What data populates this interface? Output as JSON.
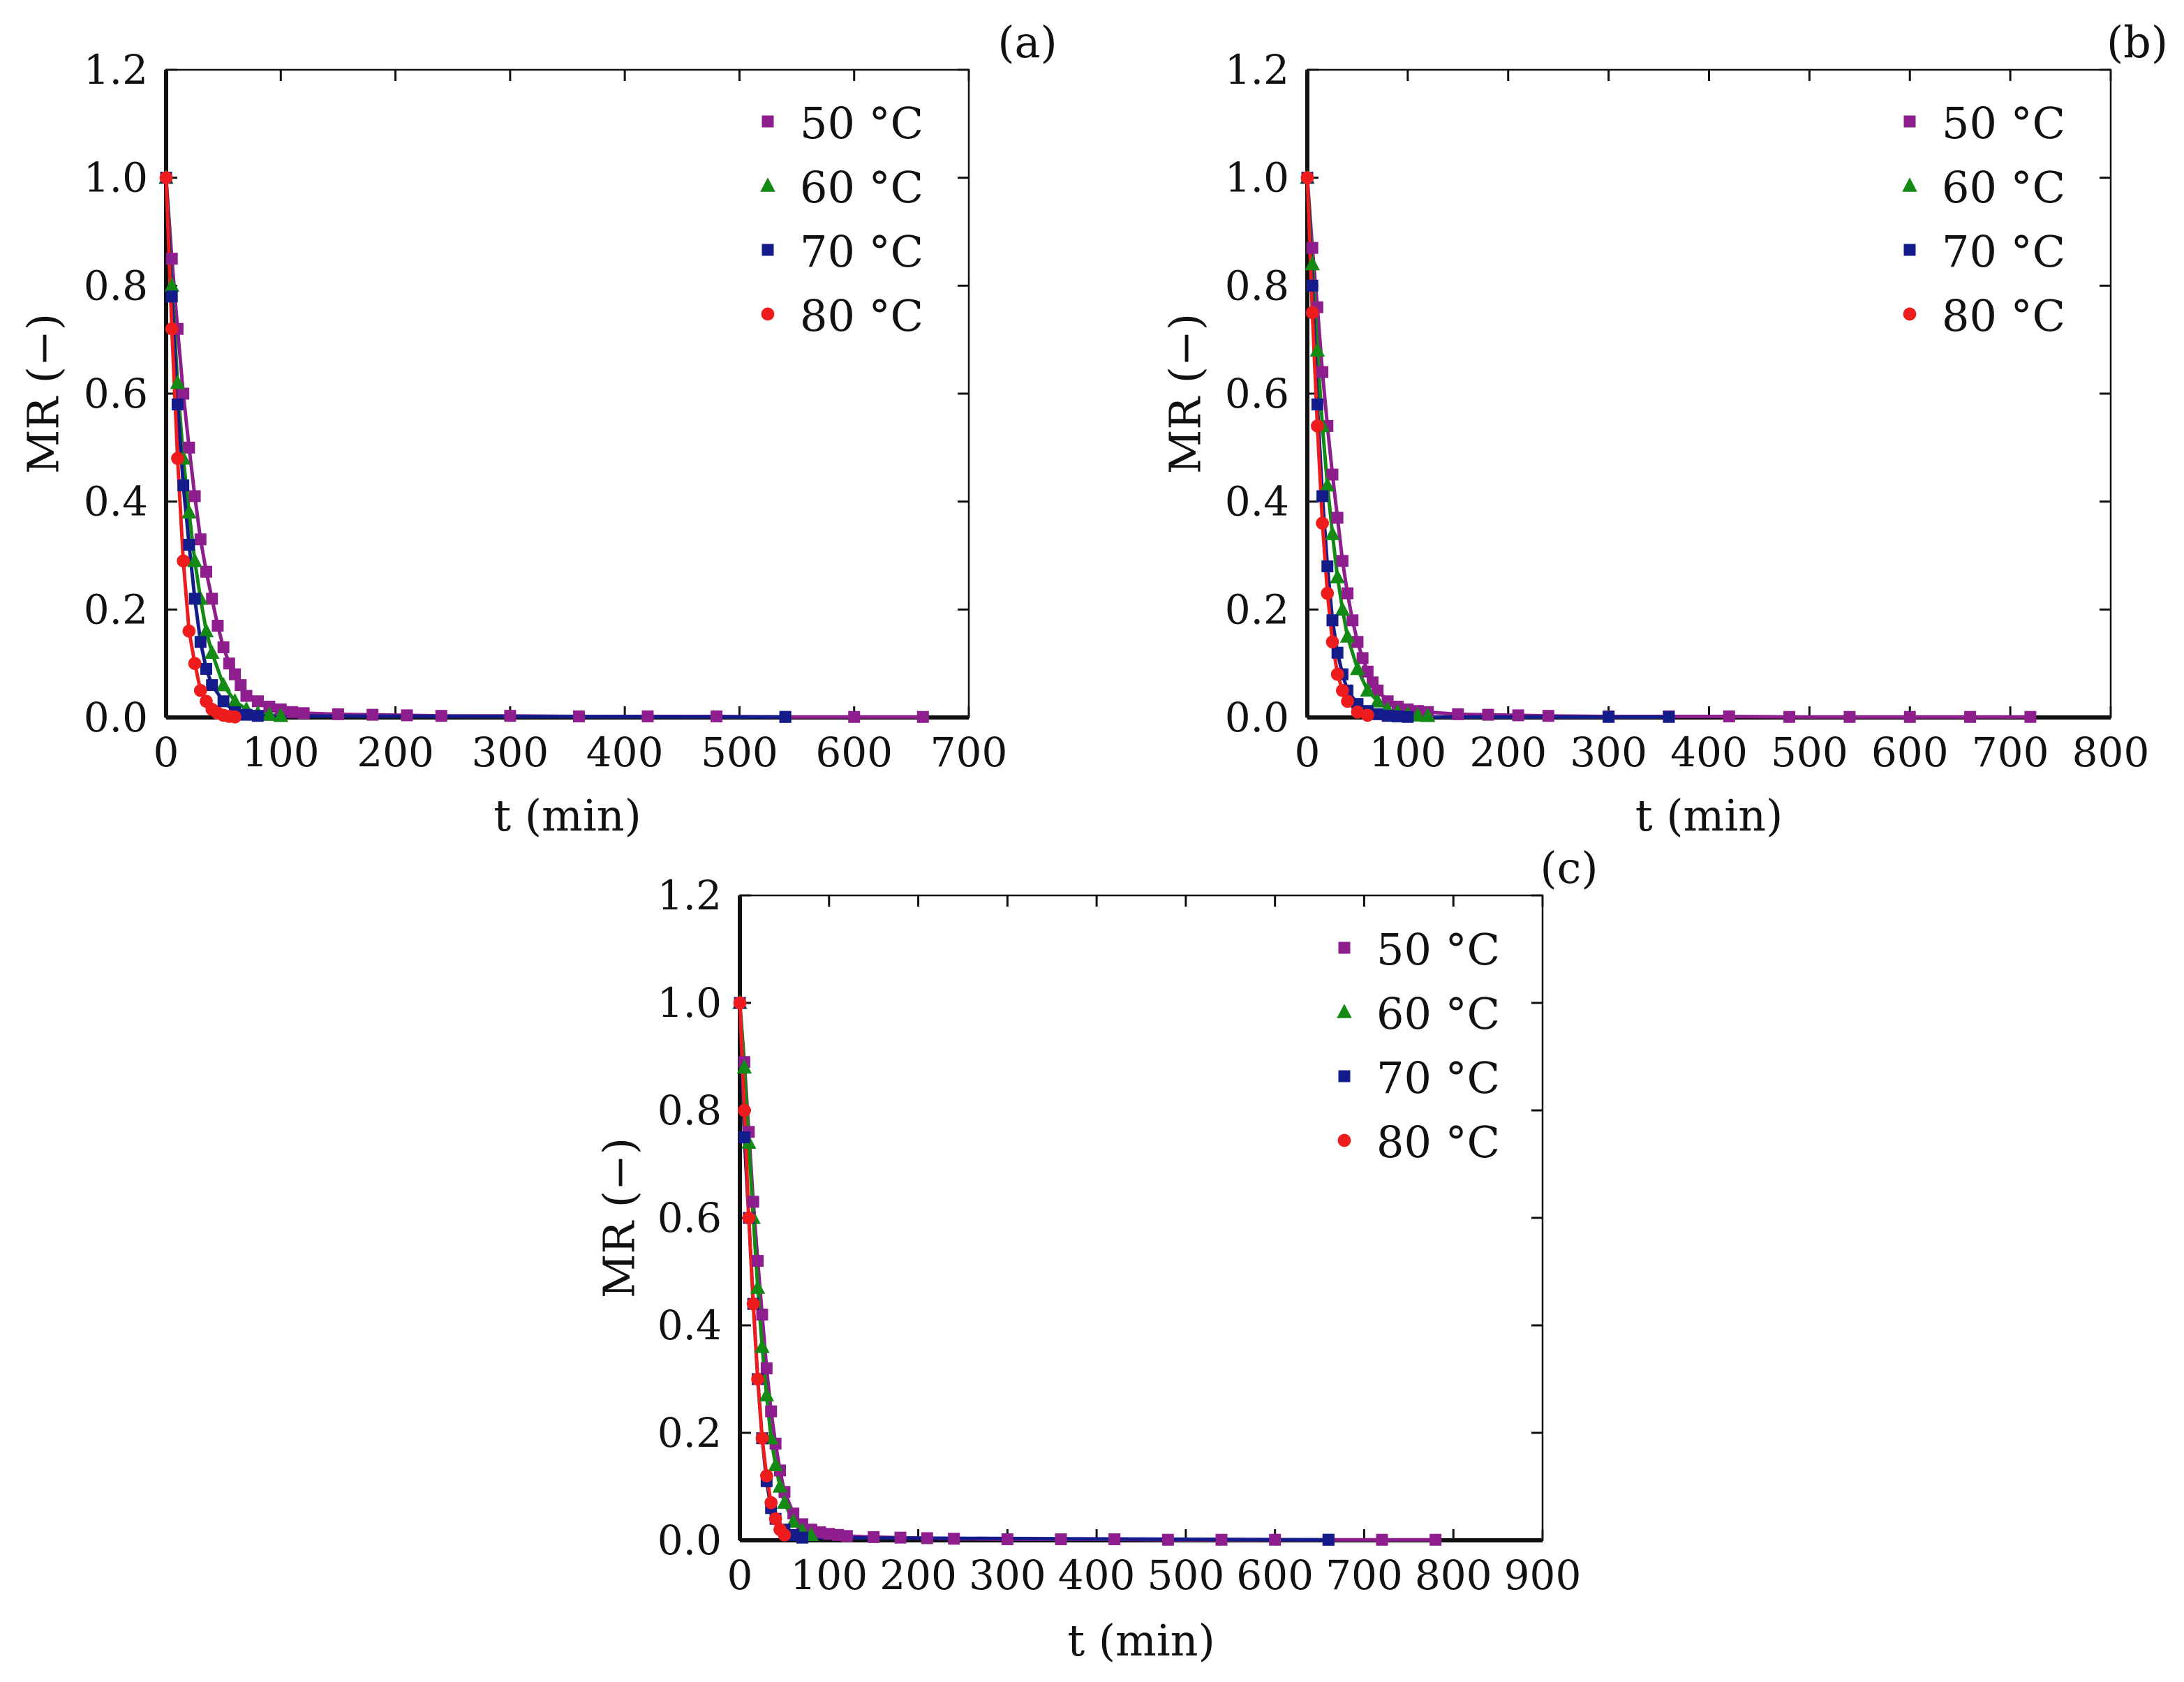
{
  "colors": {
    "50": "#8e1e8e",
    "60": "#138a13",
    "70": "#141c8c",
    "80": "#ee1c1c",
    "axis": "#111111"
  },
  "chart_data": [
    {
      "type": "line",
      "panel_label": "(a)",
      "xlabel": "t (min)",
      "ylabel": "MR (−)",
      "xlim": [
        0,
        700
      ],
      "ylim": [
        0,
        1.2
      ],
      "xticks": [
        "0",
        "100",
        "200",
        "300",
        "400",
        "500",
        "600",
        "700"
      ],
      "yticks": [
        "0.0",
        "0.2",
        "0.4",
        "0.6",
        "0.8",
        "1.0",
        "1.2"
      ],
      "legend": "top-right",
      "series": [
        {
          "name": "50 °C",
          "marker": "square",
          "color_key": "50",
          "x": [
            0,
            5,
            10,
            15,
            20,
            25,
            30,
            35,
            40,
            45,
            50,
            55,
            60,
            65,
            70,
            80,
            90,
            100,
            110,
            120,
            150,
            180,
            210,
            240,
            300,
            360,
            420,
            480,
            540,
            600,
            660
          ],
          "y": [
            1.0,
            0.85,
            0.72,
            0.6,
            0.5,
            0.41,
            0.33,
            0.27,
            0.22,
            0.17,
            0.13,
            0.1,
            0.08,
            0.06,
            0.04,
            0.03,
            0.02,
            0.015,
            0.01,
            0.008,
            0.006,
            0.005,
            0.004,
            0.003,
            0.003,
            0.002,
            0.002,
            0.002,
            0.001,
            0.001,
            0.001
          ]
        },
        {
          "name": "60 °C",
          "marker": "triangle",
          "color_key": "60",
          "x": [
            0,
            5,
            10,
            15,
            20,
            25,
            30,
            35,
            40,
            50,
            60,
            70,
            80,
            90,
            100
          ],
          "y": [
            1.0,
            0.8,
            0.62,
            0.48,
            0.38,
            0.29,
            0.22,
            0.16,
            0.12,
            0.06,
            0.03,
            0.015,
            0.008,
            0.005,
            0.003
          ]
        },
        {
          "name": "70 °C",
          "marker": "square",
          "color_key": "70",
          "x": [
            0,
            5,
            10,
            15,
            20,
            25,
            30,
            35,
            40,
            50,
            60,
            70,
            80,
            540
          ],
          "y": [
            1.0,
            0.78,
            0.58,
            0.43,
            0.32,
            0.22,
            0.14,
            0.09,
            0.06,
            0.03,
            0.01,
            0.005,
            0.003,
            0.001
          ]
        },
        {
          "name": "80 °C",
          "marker": "circle",
          "color_key": "80",
          "x": [
            0,
            5,
            10,
            15,
            20,
            25,
            30,
            35,
            40,
            45,
            50,
            55,
            60
          ],
          "y": [
            1.0,
            0.72,
            0.48,
            0.29,
            0.16,
            0.1,
            0.05,
            0.03,
            0.015,
            0.008,
            0.004,
            0.002,
            0.001
          ]
        }
      ]
    },
    {
      "type": "line",
      "panel_label": "(b)",
      "xlabel": "t (min)",
      "ylabel": "MR (−)",
      "xlim": [
        0,
        800
      ],
      "ylim": [
        0,
        1.2
      ],
      "xticks": [
        "0",
        "100",
        "200",
        "300",
        "400",
        "500",
        "600",
        "700",
        "800"
      ],
      "yticks": [
        "0.0",
        "0.2",
        "0.4",
        "0.6",
        "0.8",
        "1.0",
        "1.2"
      ],
      "legend": "top-right",
      "series": [
        {
          "name": "50 °C",
          "marker": "square",
          "color_key": "50",
          "x": [
            0,
            5,
            10,
            15,
            20,
            25,
            30,
            35,
            40,
            45,
            50,
            55,
            60,
            65,
            70,
            80,
            90,
            100,
            110,
            120,
            150,
            180,
            210,
            240,
            300,
            360,
            420,
            480,
            540,
            600,
            660,
            720
          ],
          "y": [
            1.0,
            0.87,
            0.76,
            0.64,
            0.54,
            0.45,
            0.37,
            0.29,
            0.23,
            0.18,
            0.14,
            0.11,
            0.085,
            0.065,
            0.05,
            0.03,
            0.02,
            0.015,
            0.012,
            0.01,
            0.006,
            0.005,
            0.004,
            0.003,
            0.002,
            0.002,
            0.002,
            0.001,
            0.001,
            0.001,
            0.001,
            0.001
          ]
        },
        {
          "name": "60 °C",
          "marker": "triangle",
          "color_key": "60",
          "x": [
            0,
            5,
            10,
            15,
            20,
            25,
            30,
            35,
            40,
            50,
            60,
            70,
            80,
            90,
            100,
            110,
            120
          ],
          "y": [
            1.0,
            0.84,
            0.68,
            0.54,
            0.43,
            0.34,
            0.26,
            0.2,
            0.15,
            0.09,
            0.05,
            0.03,
            0.015,
            0.01,
            0.006,
            0.004,
            0.003
          ]
        },
        {
          "name": "70 °C",
          "marker": "square",
          "color_key": "70",
          "x": [
            0,
            5,
            10,
            15,
            20,
            25,
            30,
            35,
            40,
            50,
            60,
            70,
            80,
            90,
            100,
            300,
            360
          ],
          "y": [
            1.0,
            0.8,
            0.58,
            0.41,
            0.28,
            0.18,
            0.12,
            0.08,
            0.05,
            0.025,
            0.012,
            0.006,
            0.003,
            0.002,
            0.001,
            0.001,
            0.001
          ]
        },
        {
          "name": "80 °C",
          "marker": "circle",
          "color_key": "80",
          "x": [
            0,
            5,
            10,
            15,
            20,
            25,
            30,
            35,
            40,
            50,
            60
          ],
          "y": [
            1.0,
            0.75,
            0.54,
            0.36,
            0.23,
            0.14,
            0.08,
            0.05,
            0.03,
            0.01,
            0.004
          ]
        }
      ]
    },
    {
      "type": "line",
      "panel_label": "(c)",
      "xlabel": "t (min)",
      "ylabel": "MR (−)",
      "xlim": [
        0,
        900
      ],
      "ylim": [
        0,
        1.2
      ],
      "xticks": [
        "0",
        "100",
        "200",
        "300",
        "400",
        "500",
        "600",
        "700",
        "800",
        "900"
      ],
      "yticks": [
        "0.0",
        "0.2",
        "0.4",
        "0.6",
        "0.8",
        "1.0",
        "1.2"
      ],
      "legend": "top-right",
      "series": [
        {
          "name": "50 °C",
          "marker": "square",
          "color_key": "50",
          "x": [
            0,
            5,
            10,
            15,
            20,
            25,
            30,
            35,
            40,
            45,
            50,
            60,
            70,
            80,
            90,
            100,
            110,
            120,
            150,
            180,
            210,
            240,
            300,
            360,
            420,
            480,
            540,
            600,
            660,
            720,
            780
          ],
          "y": [
            1.0,
            0.89,
            0.76,
            0.63,
            0.52,
            0.42,
            0.32,
            0.24,
            0.18,
            0.13,
            0.09,
            0.05,
            0.03,
            0.02,
            0.015,
            0.012,
            0.01,
            0.008,
            0.006,
            0.005,
            0.004,
            0.003,
            0.002,
            0.002,
            0.002,
            0.001,
            0.001,
            0.001,
            0.001,
            0.001,
            0.001
          ]
        },
        {
          "name": "60 °C",
          "marker": "triangle",
          "color_key": "60",
          "x": [
            0,
            5,
            10,
            15,
            20,
            25,
            30,
            35,
            40,
            45,
            50,
            60,
            70,
            80
          ],
          "y": [
            1.0,
            0.88,
            0.74,
            0.6,
            0.47,
            0.36,
            0.27,
            0.19,
            0.14,
            0.1,
            0.07,
            0.035,
            0.018,
            0.01
          ]
        },
        {
          "name": "70 °C",
          "marker": "square",
          "color_key": "70",
          "x": [
            0,
            5,
            10,
            15,
            20,
            25,
            30,
            35,
            40,
            50,
            60,
            70,
            660
          ],
          "y": [
            1.0,
            0.75,
            0.6,
            0.44,
            0.3,
            0.19,
            0.11,
            0.06,
            0.04,
            0.02,
            0.01,
            0.005,
            0.001
          ]
        },
        {
          "name": "80 °C",
          "marker": "circle",
          "color_key": "80",
          "x": [
            0,
            5,
            10,
            15,
            20,
            25,
            30,
            35,
            40,
            45,
            50
          ],
          "y": [
            1.0,
            0.8,
            0.6,
            0.44,
            0.3,
            0.19,
            0.12,
            0.07,
            0.04,
            0.02,
            0.01
          ]
        }
      ]
    }
  ]
}
